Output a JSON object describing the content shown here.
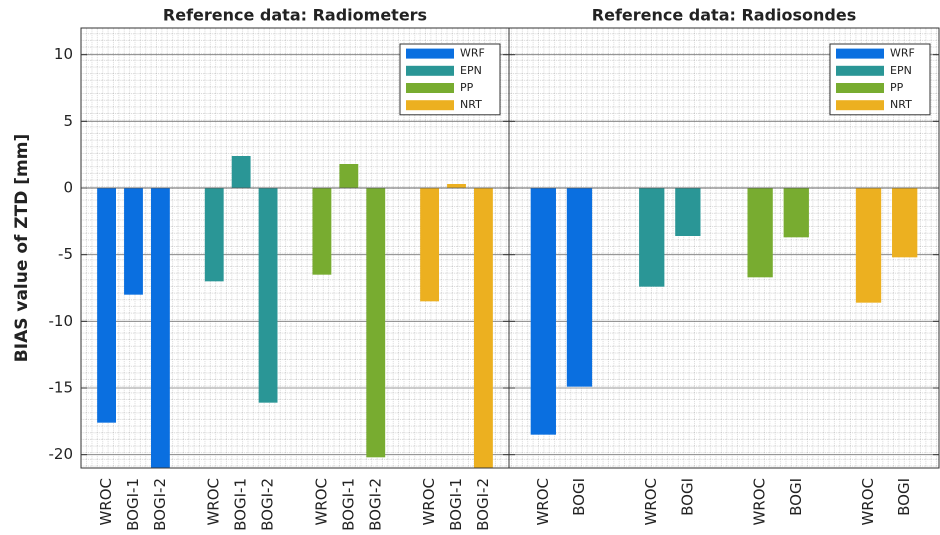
{
  "chart_data": [
    {
      "type": "bar",
      "title": "Reference data: Radiometers",
      "ylabel": "BIAS value of ZTD [mm]",
      "categories": [
        "WROC",
        "BOGI-1",
        "BOGI-2"
      ],
      "series": [
        {
          "name": "WRF",
          "color": "#0a6fe0",
          "values": [
            -17.6,
            -8.0,
            -22
          ]
        },
        {
          "name": "EPN",
          "color": "#2a9696",
          "values": [
            -7.0,
            2.4,
            -16.1
          ]
        },
        {
          "name": "PP",
          "color": "#78ac30",
          "values": [
            -6.5,
            1.8,
            -20.2
          ]
        },
        {
          "name": "NRT",
          "color": "#ecb020",
          "values": [
            -8.5,
            0.3,
            -22
          ]
        }
      ],
      "ylim": [
        -21,
        12
      ],
      "yticks": [
        -20,
        -15,
        -10,
        -5,
        0,
        5,
        10
      ],
      "grid": true,
      "legend": "upper right",
      "show_ytick_labels": true
    },
    {
      "type": "bar",
      "title": "Reference data: Radiosondes",
      "categories": [
        "WROC",
        "BOGI"
      ],
      "series": [
        {
          "name": "WRF",
          "color": "#0a6fe0",
          "values": [
            -18.5,
            -14.9
          ]
        },
        {
          "name": "EPN",
          "color": "#2a9696",
          "values": [
            -7.4,
            -3.6
          ]
        },
        {
          "name": "PP",
          "color": "#78ac30",
          "values": [
            -6.7,
            -3.7
          ]
        },
        {
          "name": "NRT",
          "color": "#ecb020",
          "values": [
            -8.6,
            -5.2
          ]
        }
      ],
      "ylim": [
        -21,
        12
      ],
      "yticks": [
        -20,
        -15,
        -10,
        -5,
        0,
        5,
        10
      ],
      "grid": true,
      "legend": "upper right",
      "show_ytick_labels": false
    }
  ]
}
